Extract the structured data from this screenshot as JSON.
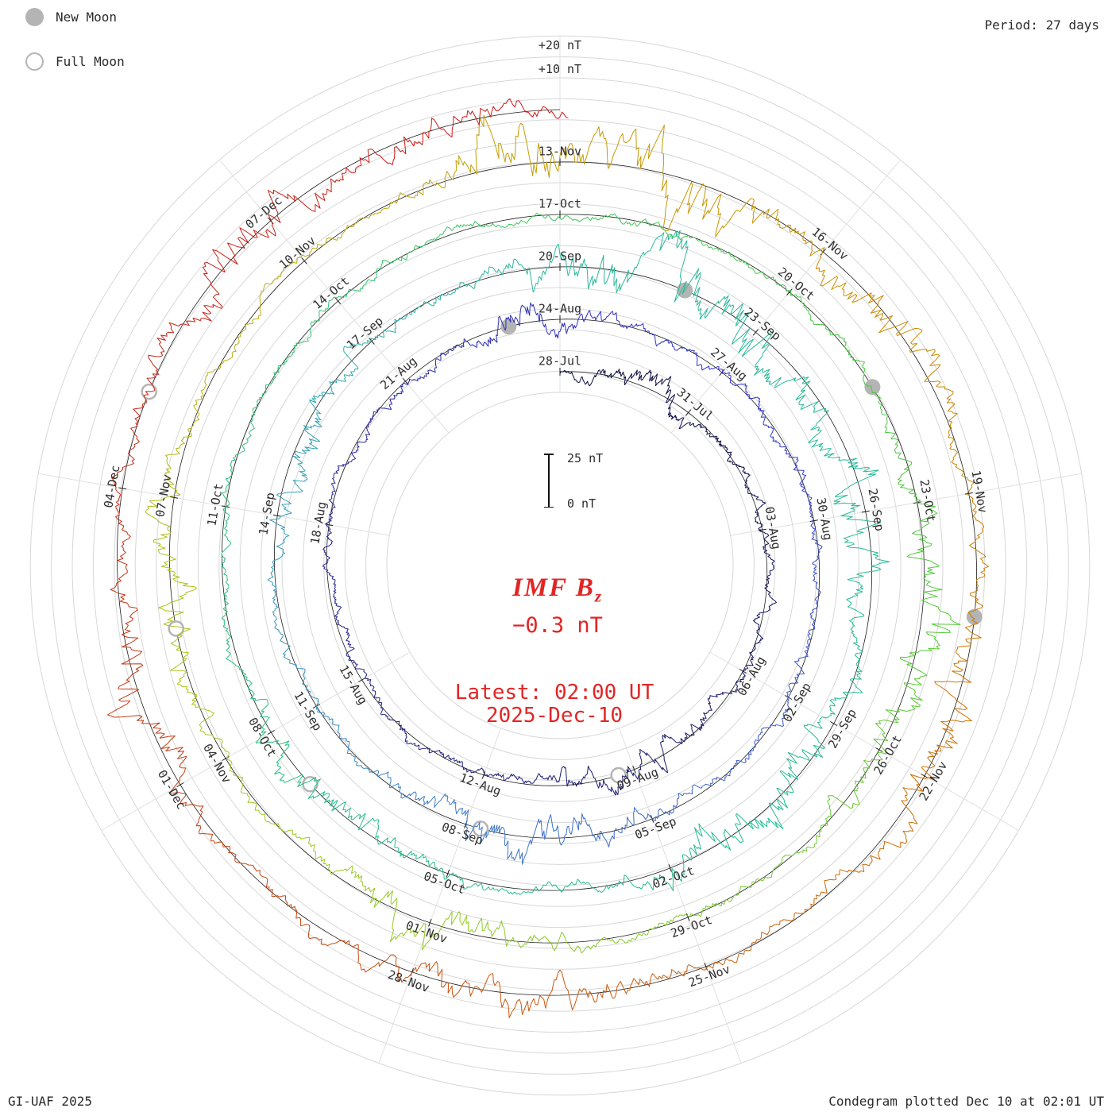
{
  "colors": {
    "accent": "#e22525",
    "moon": "#b4b4b4",
    "label": "#2e2e2e"
  },
  "legend": {
    "new_moon": "New Moon",
    "full_moon": "Full Moon"
  },
  "header": {
    "period_label": "Period: 27 days"
  },
  "radial_labels": {
    "outer": "+20 nT",
    "inner": "+10 nT"
  },
  "center": {
    "title_main": "IMF B",
    "title_sub": "z",
    "value": "−0.3 nT",
    "latest_line1": "Latest: 02:00 UT",
    "latest_line2": "2025-Dec-10",
    "scale_top": "25 nT",
    "scale_bottom": "0 nT"
  },
  "footer": {
    "left": "GI-UAF 2025",
    "right": "Condegram plotted Dec 10 at 02:01 UT"
  },
  "chart_data": {
    "type": "condegram spiral polar time-series",
    "quantity": "IMF Bz",
    "units": "nT",
    "period_days": 27,
    "total_days": 135.08,
    "start_date": "2025-Jul-28",
    "end_date": "2025-Dec-10",
    "latest_value_nT": -0.3,
    "latest_time": "02:00 UT 2025-Dec-10",
    "scale_bar_nT": [
      0,
      25
    ],
    "grid_interval_nT": 10,
    "value_clip_nT": 26,
    "rotation_start_dates": [
      "28-Jul",
      "24-Aug",
      "20-Sep",
      "17-Oct",
      "13-Nov"
    ],
    "date_labels": [
      {
        "t": 0,
        "d": "28-Jul"
      },
      {
        "t": 3,
        "d": "31-Jul"
      },
      {
        "t": 6,
        "d": "03-Aug"
      },
      {
        "t": 9,
        "d": "06-Aug"
      },
      {
        "t": 12,
        "d": "09-Aug"
      },
      {
        "t": 15,
        "d": "12-Aug"
      },
      {
        "t": 18,
        "d": "15-Aug"
      },
      {
        "t": 21,
        "d": "18-Aug"
      },
      {
        "t": 24,
        "d": "21-Aug"
      },
      {
        "t": 27,
        "d": "24-Aug"
      },
      {
        "t": 30,
        "d": "27-Aug"
      },
      {
        "t": 33,
        "d": "30-Aug"
      },
      {
        "t": 36,
        "d": "02-Sep"
      },
      {
        "t": 39,
        "d": "05-Sep"
      },
      {
        "t": 42,
        "d": "08-Sep"
      },
      {
        "t": 45,
        "d": "11-Sep"
      },
      {
        "t": 48,
        "d": "14-Sep"
      },
      {
        "t": 51,
        "d": "17-Sep"
      },
      {
        "t": 54,
        "d": "20-Sep"
      },
      {
        "t": 57,
        "d": "23-Sep"
      },
      {
        "t": 60,
        "d": "26-Sep"
      },
      {
        "t": 63,
        "d": "29-Sep"
      },
      {
        "t": 66,
        "d": "02-Oct"
      },
      {
        "t": 69,
        "d": "05-Oct"
      },
      {
        "t": 72,
        "d": "08-Oct"
      },
      {
        "t": 75,
        "d": "11-Oct"
      },
      {
        "t": 78,
        "d": "14-Oct"
      },
      {
        "t": 81,
        "d": "17-Oct"
      },
      {
        "t": 84,
        "d": "20-Oct"
      },
      {
        "t": 87,
        "d": "23-Oct"
      },
      {
        "t": 90,
        "d": "26-Oct"
      },
      {
        "t": 93,
        "d": "29-Oct"
      },
      {
        "t": 96,
        "d": "01-Nov"
      },
      {
        "t": 99,
        "d": "04-Nov"
      },
      {
        "t": 102,
        "d": "07-Nov"
      },
      {
        "t": 105,
        "d": "10-Nov"
      },
      {
        "t": 108,
        "d": "13-Nov"
      },
      {
        "t": 111,
        "d": "16-Nov"
      },
      {
        "t": 114,
        "d": "19-Nov"
      },
      {
        "t": 117,
        "d": "22-Nov"
      },
      {
        "t": 120,
        "d": "25-Nov"
      },
      {
        "t": 123,
        "d": "28-Nov"
      },
      {
        "t": 126,
        "d": "01-Dec"
      },
      {
        "t": 129,
        "d": "04-Dec"
      },
      {
        "t": 132,
        "d": "07-Dec"
      }
    ],
    "moon_events": [
      {
        "type": "full",
        "date": "09-Aug",
        "t": 12.33
      },
      {
        "type": "new",
        "date": "23-Aug",
        "t": 26.09
      },
      {
        "type": "full",
        "date": "07-Sep",
        "t": 41.76
      },
      {
        "type": "new",
        "date": "21-Sep",
        "t": 55.83
      },
      {
        "type": "full",
        "date": "07-Oct",
        "t": 71.16
      },
      {
        "type": "new",
        "date": "21-Oct",
        "t": 85.52
      },
      {
        "type": "full",
        "date": "05-Nov",
        "t": 100.55
      },
      {
        "type": "new",
        "date": "20-Nov",
        "t": 115.28
      },
      {
        "type": "full",
        "date": "04-Dec",
        "t": 129.97
      }
    ],
    "color_stops": [
      [
        0,
        "#0b0b3c"
      ],
      [
        14,
        "#1c1c74"
      ],
      [
        24,
        "#2a2aa8"
      ],
      [
        30,
        "#3434cc"
      ],
      [
        41,
        "#3f74c8"
      ],
      [
        48,
        "#35a0bc"
      ],
      [
        54,
        "#2db89e"
      ],
      [
        66,
        "#25bc92"
      ],
      [
        76,
        "#2ec07c"
      ],
      [
        81,
        "#43c45a"
      ],
      [
        88,
        "#52c83c"
      ],
      [
        94,
        "#86cc28"
      ],
      [
        100,
        "#abc61c"
      ],
      [
        104,
        "#b8ae10"
      ],
      [
        108,
        "#c49c04"
      ],
      [
        112,
        "#cc8c00"
      ],
      [
        117,
        "#cc7006"
      ],
      [
        122,
        "#c8560e"
      ],
      [
        127,
        "#c43a16"
      ],
      [
        131,
        "#c62418"
      ],
      [
        135.1,
        "#d01616"
      ]
    ],
    "activity_bursts": [
      {
        "t": 2.0,
        "w": 0.8,
        "amp": 2.5
      },
      {
        "t": 12,
        "w": 1.0,
        "amp": 2.0
      },
      {
        "t": 26.5,
        "w": 0.7,
        "amp": 3.0
      },
      {
        "t": 41,
        "w": 1.2,
        "amp": 3.5
      },
      {
        "t": 49,
        "w": 0.8,
        "amp": 3.0
      },
      {
        "t": 56,
        "w": 1.5,
        "amp": 6.5
      },
      {
        "t": 60,
        "w": 1.0,
        "amp": 4.0
      },
      {
        "t": 64.5,
        "w": 1.2,
        "amp": 5.0
      },
      {
        "t": 71,
        "w": 1.0,
        "amp": 3.0
      },
      {
        "t": 88.5,
        "w": 1.2,
        "amp": 4.5
      },
      {
        "t": 96,
        "w": 1.0,
        "amp": 3.5
      },
      {
        "t": 101,
        "w": 0.9,
        "amp": 3.5
      },
      {
        "t": 107.5,
        "w": 0.5,
        "amp": 8.0
      },
      {
        "t": 109.3,
        "w": 0.6,
        "amp": 9.0
      },
      {
        "t": 112,
        "w": 0.8,
        "amp": 4.0
      },
      {
        "t": 116.5,
        "w": 1.0,
        "amp": 4.0
      },
      {
        "t": 122,
        "w": 1.0,
        "amp": 4.0
      },
      {
        "t": 127,
        "w": 1.0,
        "amp": 3.5
      },
      {
        "t": 131.5,
        "w": 1.0,
        "amp": 4.5
      },
      {
        "t": 134,
        "w": 0.6,
        "amp": 3.0
      }
    ],
    "noise_seed": 1337
  }
}
